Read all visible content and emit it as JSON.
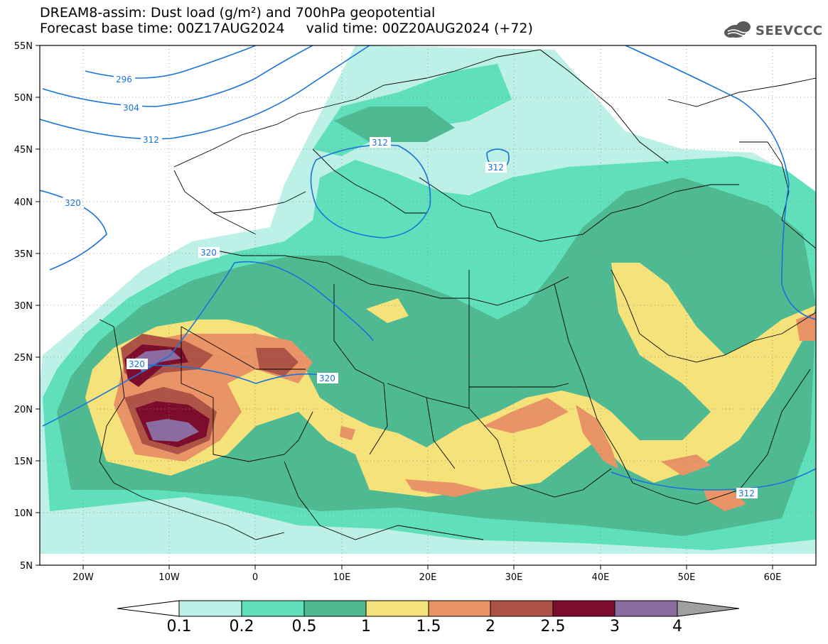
{
  "header": {
    "title_line1": "DREAM8-assim: Dust load (g/m²) and 700hPa geopotential",
    "title_line2": "Forecast base time: 00Z17AUG2024     valid time: 00Z20AUG2024 (+72)",
    "logo_text": "SEEVCCC"
  },
  "axes": {
    "lat_labels": [
      "55N",
      "50N",
      "45N",
      "40N",
      "35N",
      "30N",
      "25N",
      "20N",
      "15N",
      "10N",
      "5N"
    ],
    "lon_labels": [
      "20W",
      "10W",
      "0",
      "10E",
      "20E",
      "30E",
      "40E",
      "50E",
      "60E"
    ]
  },
  "contours": {
    "unit": "700hPa geopotential (dam)",
    "labels": [
      "296",
      "304",
      "312",
      "320",
      "320",
      "320",
      "320",
      "312",
      "312",
      "312"
    ]
  },
  "colorbar": {
    "labels": [
      "0.1",
      "0.2",
      "0.5",
      "1",
      "1.5",
      "2",
      "2.5",
      "3",
      "4"
    ],
    "colors": [
      "#bdf0e6",
      "#5fe0bb",
      "#4fba92",
      "#f5e27a",
      "#e89466",
      "#ad5446",
      "#7d0d2c",
      "#8b6ca1",
      "#a0a0a0"
    ]
  },
  "colors": {
    "contour": "#1a73d9",
    "border": "#000000"
  }
}
